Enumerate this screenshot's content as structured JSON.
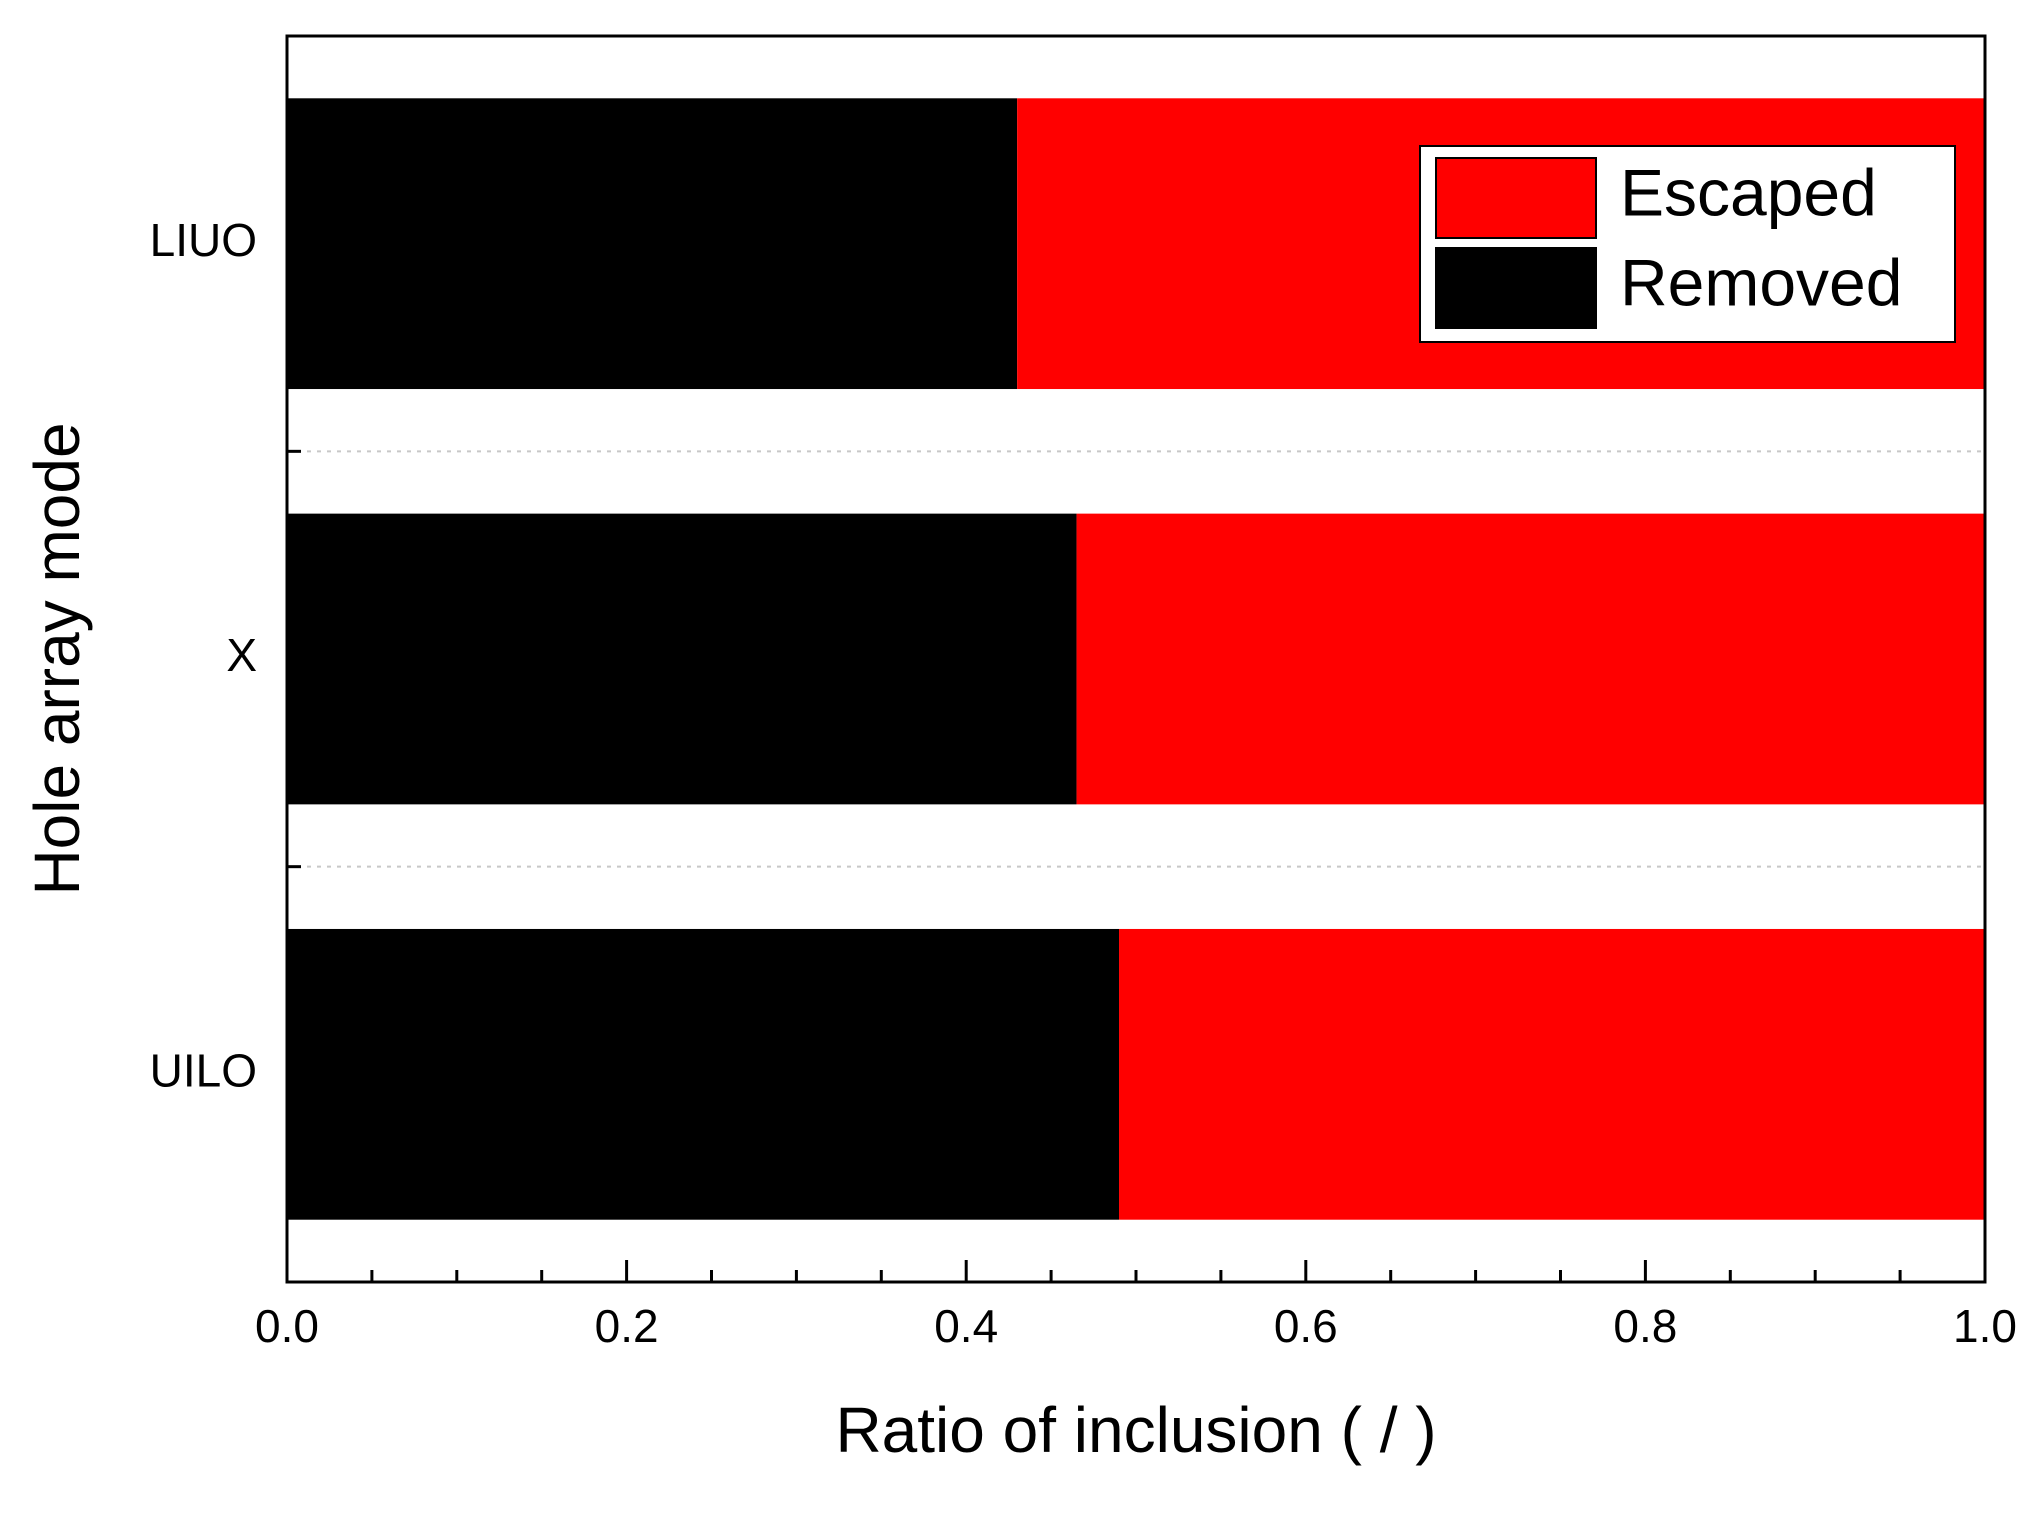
{
  "chart_data": {
    "type": "bar",
    "orientation": "horizontal",
    "stacked": true,
    "title": "",
    "xlabel": "Ratio of inclusion ( / )",
    "ylabel": "Hole array mode",
    "xlim": [
      0.0,
      1.0
    ],
    "xticks": [
      "0.0",
      "0.2",
      "0.4",
      "0.6",
      "0.8",
      "1.0"
    ],
    "categories": [
      "LIUO",
      "X",
      "UILO"
    ],
    "series": [
      {
        "name": "Removed",
        "color": "#000000",
        "values": [
          0.43,
          0.465,
          0.49
        ]
      },
      {
        "name": "Escaped",
        "color": "#ff0000",
        "values": [
          0.57,
          0.535,
          0.51
        ]
      }
    ],
    "legend": {
      "position": "top-right",
      "entries": [
        {
          "name": "Escaped",
          "color": "#ff0000"
        },
        {
          "name": "Removed",
          "color": "#000000"
        }
      ]
    },
    "grid": "dotted separators between categories"
  }
}
